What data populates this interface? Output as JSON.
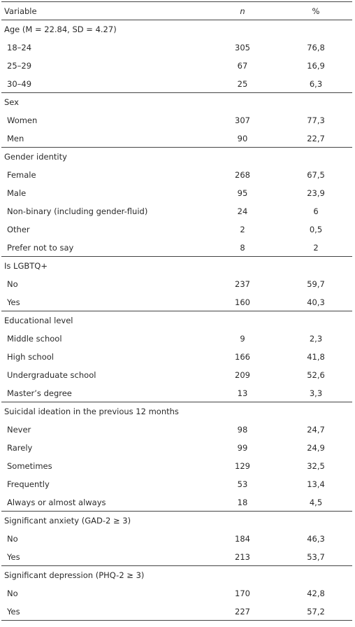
{
  "table": {
    "header": [
      "Variable",
      "n",
      "%"
    ],
    "sections": [
      {
        "title": "Age (M = 22.84, SD = 4.27)",
        "rows": [
          [
            "18–24",
            "305",
            "76,8"
          ],
          [
            "25–29",
            "67",
            "16,9"
          ],
          [
            "30–49",
            "25",
            "6,3"
          ]
        ]
      },
      {
        "title": "Sex",
        "rows": [
          [
            "Women",
            "307",
            "77,3"
          ],
          [
            "Men",
            "90",
            "22,7"
          ]
        ]
      },
      {
        "title": "Gender identity",
        "rows": [
          [
            "Female",
            "268",
            "67,5"
          ],
          [
            "Male",
            "95",
            "23,9"
          ],
          [
            "Non-binary (including gender-fluid)",
            "24",
            "6"
          ],
          [
            "Other",
            "2",
            "0,5"
          ],
          [
            "Prefer not to say",
            "8",
            "2"
          ]
        ]
      },
      {
        "title": "Is LGBTQ+",
        "rows": [
          [
            "No",
            "237",
            "59,7"
          ],
          [
            "Yes",
            "160",
            "40,3"
          ]
        ]
      },
      {
        "title": "Educational level",
        "rows": [
          [
            "Middle school",
            "9",
            "2,3"
          ],
          [
            "High school",
            "166",
            "41,8"
          ],
          [
            "Undergraduate school",
            "209",
            "52,6"
          ],
          [
            "Master’s degree",
            "13",
            "3,3"
          ]
        ]
      },
      {
        "title": "Suicidal ideation in the previous 12 months",
        "rows": [
          [
            "Never",
            "98",
            "24,7"
          ],
          [
            "Rarely",
            "99",
            "24,9"
          ],
          [
            "Sometimes",
            "129",
            "32,5"
          ],
          [
            "Frequently",
            "53",
            "13,4"
          ],
          [
            "Always or almost always",
            "18",
            "4,5"
          ]
        ]
      },
      {
        "title": "Significant anxiety (GAD-2 ≥ 3)",
        "rows": [
          [
            "No",
            "184",
            "46,3"
          ],
          [
            "Yes",
            "213",
            "53,7"
          ]
        ]
      },
      {
        "title": "Significant depression (PHQ-2 ≥ 3)",
        "rows": [
          [
            "No",
            "170",
            "42,8"
          ],
          [
            "Yes",
            "227",
            "57,2"
          ]
        ]
      }
    ]
  }
}
